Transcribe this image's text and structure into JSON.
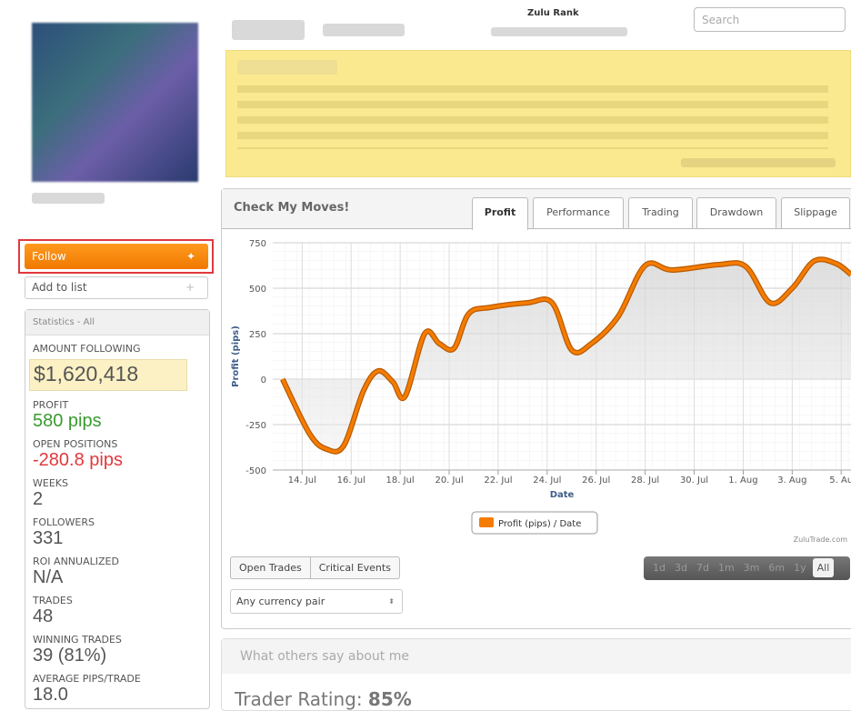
{
  "header": {
    "zulu_rank": "Zulu Rank",
    "search_placeholder": "Search"
  },
  "sidebar": {
    "follow": "Follow",
    "add_to_list": "Add to list",
    "statistics_title": "Statistics - All",
    "stats": [
      {
        "label": "AMOUNT FOLLOWING",
        "value": "$1,620,418",
        "color": "#555555"
      },
      {
        "label": "PROFIT",
        "value": "580 pips",
        "color": "#3a9a2f"
      },
      {
        "label": "OPEN POSITIONS",
        "value": "-280.8 pips",
        "color": "#e0393e"
      },
      {
        "label": "WEEKS",
        "value": "2",
        "color": "#555555"
      },
      {
        "label": "FOLLOWERS",
        "value": "331",
        "color": "#555555"
      },
      {
        "label": "ROI ANNUALIZED",
        "value": "N/A",
        "color": "#555555"
      },
      {
        "label": "TRADES",
        "value": "48",
        "color": "#555555"
      },
      {
        "label": "WINNING TRADES",
        "value": "39 (81%)",
        "color": "#555555"
      },
      {
        "label": "AVERAGE PIPS/TRADE",
        "value": "18.0",
        "color": "#555555"
      }
    ]
  },
  "panel": {
    "title": "Check My Moves!",
    "tabs": [
      "Profit",
      "Performance",
      "Trading",
      "Drawdown",
      "Slippage"
    ],
    "buttons": [
      "Open Trades",
      "Critical Events"
    ],
    "ranges": [
      "1d",
      "3d",
      "7d",
      "1m",
      "3m",
      "6m",
      "1y",
      "All"
    ],
    "currency_select": "Any currency pair",
    "reviews_title": "What others say about me",
    "rating_label": "Trader Rating:",
    "rating_value": "85%"
  },
  "chart_data": {
    "type": "line",
    "x_label": "Date",
    "y_label": "Profit (pips)",
    "credits": "ZuluTrade.com",
    "x": [
      -0.8,
      0.3,
      1.0,
      1.7,
      2.5,
      3.1,
      3.7,
      4.2,
      5.0,
      5.6,
      6.2,
      6.8,
      7.7,
      9.2,
      10.2,
      11.0,
      11.8,
      12.9,
      14.0,
      15.1,
      17.0,
      18.1,
      19.1,
      20.0,
      20.9,
      21.8,
      22.4
    ],
    "series": [
      {
        "name": "Profit (pips) / Date",
        "color": "#f57c00",
        "values": [
          0,
          -300,
          -385,
          -365,
          -65,
          45,
          -15,
          -95,
          250,
          195,
          170,
          360,
          395,
          420,
          420,
          160,
          195,
          345,
          625,
          600,
          630,
          620,
          420,
          500,
          650,
          635,
          575
        ]
      }
    ],
    "xlim": [
      -1.2,
      22.4
    ],
    "ylim": [
      -500,
      750
    ],
    "xticks": [
      {
        "value": 0,
        "label": "14. Jul"
      },
      {
        "value": 2,
        "label": "16. Jul"
      },
      {
        "value": 4,
        "label": "18. Jul"
      },
      {
        "value": 6,
        "label": "20. Jul"
      },
      {
        "value": 8,
        "label": "22. Jul"
      },
      {
        "value": 10,
        "label": "24. Jul"
      },
      {
        "value": 12,
        "label": "26. Jul"
      },
      {
        "value": 14,
        "label": "28. Jul"
      },
      {
        "value": 16,
        "label": "30. Jul"
      },
      {
        "value": 18,
        "label": "1. Aug"
      },
      {
        "value": 20,
        "label": "3. Aug"
      },
      {
        "value": 22,
        "label": "5. Au"
      }
    ],
    "yticks": [
      -500,
      -250,
      0,
      250,
      500,
      750
    ],
    "grid": true
  }
}
